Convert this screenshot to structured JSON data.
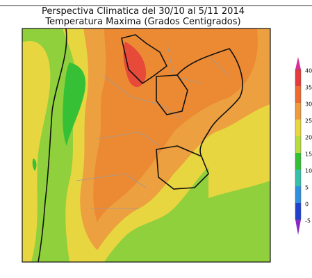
{
  "title": "Perspectiva Climatica del 30/10 al 5/11 2014",
  "subtitle": "Temperatura Maxima (Grados Centigrados)",
  "colorbar": {
    "labels": [
      "40",
      "35",
      "30",
      "25",
      "20",
      "15",
      "10",
      "5",
      "0",
      "-5"
    ]
  }
}
